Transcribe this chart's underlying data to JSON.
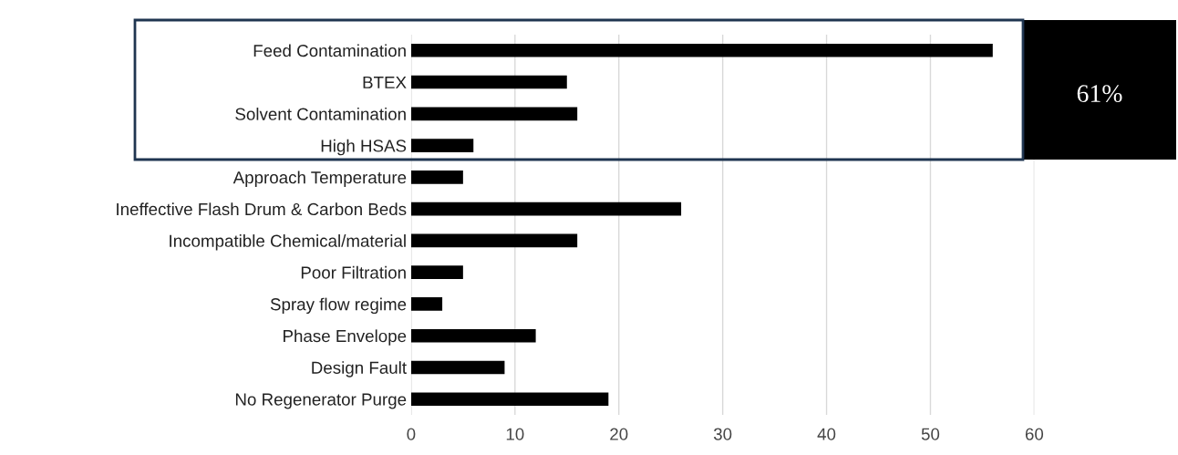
{
  "chart_data": {
    "type": "bar",
    "orientation": "horizontal",
    "categories": [
      "Feed Contamination",
      "BTEX",
      "Solvent Contamination",
      "High HSAS",
      "Approach Temperature",
      "Ineffective Flash Drum & Carbon Beds",
      "Incompatible Chemical/material",
      "Poor Filtration",
      "Spray flow regime",
      "Phase Envelope",
      "Design Fault",
      "No Regenerator Purge"
    ],
    "values": [
      56,
      15,
      16,
      6,
      5,
      26,
      16,
      5,
      3,
      12,
      9,
      19
    ],
    "color": "#000000",
    "xlim": [
      0,
      60
    ],
    "xticks": [
      0,
      10,
      20,
      30,
      40,
      50,
      60
    ],
    "grid": "x",
    "legend": false,
    "annotations": [
      "61%"
    ]
  }
}
